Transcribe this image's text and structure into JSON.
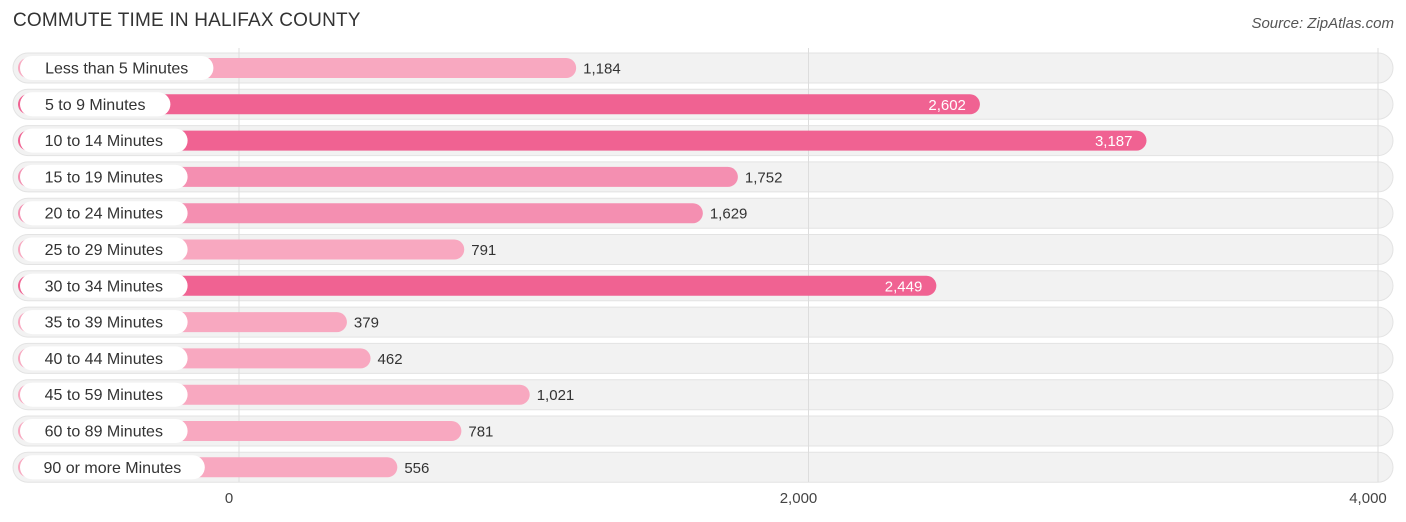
{
  "header": {
    "title": "COMMUTE TIME IN HALIFAX COUNTY",
    "source": "Source: ZipAtlas.com"
  },
  "colors": {
    "bar_strong": "#f06292",
    "bar_light": "#f8a8c0",
    "track": "#f2f2f2",
    "grid": "#dddddd"
  },
  "chart_data": {
    "type": "bar",
    "orientation": "horizontal",
    "title": "COMMUTE TIME IN HALIFAX COUNTY",
    "categories": [
      "Less than 5 Minutes",
      "5 to 9 Minutes",
      "10 to 14 Minutes",
      "15 to 19 Minutes",
      "20 to 24 Minutes",
      "25 to 29 Minutes",
      "30 to 34 Minutes",
      "35 to 39 Minutes",
      "40 to 44 Minutes",
      "45 to 59 Minutes",
      "60 to 89 Minutes",
      "90 or more Minutes"
    ],
    "values": [
      1184,
      2602,
      3187,
      1752,
      1629,
      791,
      2449,
      379,
      462,
      1021,
      781,
      556
    ],
    "value_labels": [
      "1,184",
      "2,602",
      "3,187",
      "1,752",
      "1,629",
      "791",
      "2,449",
      "379",
      "462",
      "1,021",
      "781",
      "556"
    ],
    "xlim": [
      0,
      4000
    ],
    "xticks": [
      0,
      2000,
      4000
    ],
    "xtick_labels": [
      "0",
      "2,000",
      "4,000"
    ],
    "grid": true,
    "legend": "none"
  }
}
